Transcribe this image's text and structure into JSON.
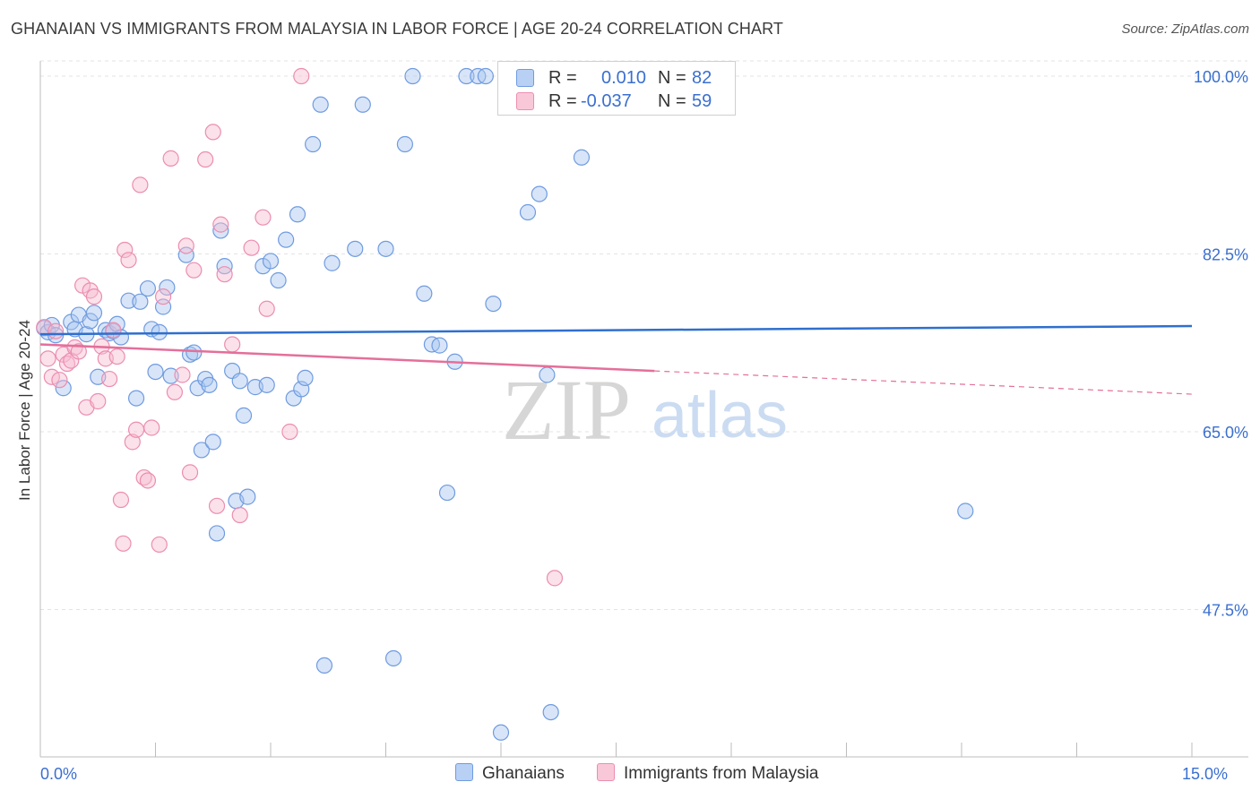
{
  "title": "GHANAIAN VS IMMIGRANTS FROM MALAYSIA IN LABOR FORCE | AGE 20-24 CORRELATION CHART",
  "source": "Source: ZipAtlas.com",
  "watermark": {
    "zip": "ZIP",
    "atlas": "atlas"
  },
  "colors": {
    "blue_fill": "#a9c6f0",
    "blue_stroke": "#6f9be0",
    "blue_line": "#2f6fce",
    "pink_fill": "#f6bcd0",
    "pink_stroke": "#ec8db0",
    "pink_line": "#e46f9a",
    "axis_value": "#3a6fd0",
    "grid": "#e3e3e3"
  },
  "legend_top": {
    "rows": [
      {
        "series": "blue",
        "r_label": "R =",
        "r_value": "0.010",
        "n_label": "N =",
        "n_value": "82"
      },
      {
        "series": "pink",
        "r_label": "R =",
        "r_value": "-0.037",
        "n_label": "N =",
        "n_value": "59"
      }
    ]
  },
  "legend_bottom": [
    {
      "series": "blue",
      "label": "Ghanaians"
    },
    {
      "series": "pink",
      "label": "Immigrants from Malaysia"
    }
  ],
  "chart_data": {
    "type": "scatter",
    "title": "GHANAIAN VS IMMIGRANTS FROM MALAYSIA IN LABOR FORCE | AGE 20-24 CORRELATION CHART",
    "xlabel": "",
    "ylabel": "In Labor Force | Age 20-24",
    "xlim": [
      0,
      15
    ],
    "ylim": [
      33,
      101.5
    ],
    "x_tick_labels": [
      {
        "value": 0,
        "label": "0.0%"
      },
      {
        "value": 15,
        "label": "15.0%"
      }
    ],
    "y_tick_labels": [
      {
        "value": 100,
        "label": "100.0%"
      },
      {
        "value": 82.5,
        "label": "82.5%"
      },
      {
        "value": 65,
        "label": "65.0%"
      },
      {
        "value": 47.5,
        "label": "47.5%"
      }
    ],
    "x_minor_ticks": [
      1.5,
      3,
      4.5,
      6,
      7.5,
      9,
      10.5,
      12,
      13.5,
      15
    ],
    "grid": true,
    "series": [
      {
        "name": "Ghanaians",
        "color": "blue",
        "trend": {
          "x": [
            0,
            15
          ],
          "y": [
            74.6,
            75.4
          ],
          "dashed_from": null
        },
        "points": [
          [
            0.05,
            75.2
          ],
          [
            0.1,
            74.8
          ],
          [
            0.15,
            75.5
          ],
          [
            0.2,
            74.5
          ],
          [
            0.3,
            69.3
          ],
          [
            0.4,
            75.8
          ],
          [
            0.45,
            75.1
          ],
          [
            0.5,
            76.5
          ],
          [
            0.6,
            74.6
          ],
          [
            0.65,
            75.9
          ],
          [
            0.7,
            76.7
          ],
          [
            0.75,
            70.4
          ],
          [
            0.85,
            75.0
          ],
          [
            0.9,
            74.7
          ],
          [
            0.95,
            74.9
          ],
          [
            1.0,
            75.6
          ],
          [
            1.05,
            74.3
          ],
          [
            1.15,
            77.9
          ],
          [
            1.25,
            68.3
          ],
          [
            1.3,
            77.8
          ],
          [
            1.4,
            79.1
          ],
          [
            1.45,
            75.1
          ],
          [
            1.5,
            70.9
          ],
          [
            1.55,
            74.8
          ],
          [
            1.6,
            77.3
          ],
          [
            1.65,
            79.2
          ],
          [
            1.7,
            70.5
          ],
          [
            1.9,
            82.4
          ],
          [
            1.95,
            72.6
          ],
          [
            2.0,
            72.8
          ],
          [
            2.05,
            69.3
          ],
          [
            2.1,
            63.2
          ],
          [
            2.15,
            70.2
          ],
          [
            2.2,
            69.6
          ],
          [
            2.25,
            64.0
          ],
          [
            2.3,
            55.0
          ],
          [
            2.35,
            84.8
          ],
          [
            2.4,
            81.3
          ],
          [
            2.5,
            71.0
          ],
          [
            2.55,
            58.2
          ],
          [
            2.6,
            70.0
          ],
          [
            2.65,
            66.6
          ],
          [
            2.7,
            58.6
          ],
          [
            2.8,
            69.4
          ],
          [
            2.9,
            81.3
          ],
          [
            2.95,
            69.6
          ],
          [
            3.0,
            81.8
          ],
          [
            3.1,
            79.9
          ],
          [
            3.2,
            83.9
          ],
          [
            3.3,
            68.3
          ],
          [
            3.35,
            86.4
          ],
          [
            3.4,
            69.2
          ],
          [
            3.45,
            70.3
          ],
          [
            3.55,
            93.3
          ],
          [
            3.65,
            97.2
          ],
          [
            3.7,
            42.0
          ],
          [
            3.8,
            81.6
          ],
          [
            4.1,
            83.0
          ],
          [
            4.2,
            97.2
          ],
          [
            4.5,
            83.0
          ],
          [
            4.6,
            42.7
          ],
          [
            4.75,
            93.3
          ],
          [
            4.85,
            100.0
          ],
          [
            5.0,
            78.6
          ],
          [
            5.1,
            73.6
          ],
          [
            5.2,
            73.5
          ],
          [
            5.3,
            59.0
          ],
          [
            5.4,
            71.9
          ],
          [
            5.55,
            100.0
          ],
          [
            5.7,
            100.0
          ],
          [
            5.8,
            100.0
          ],
          [
            5.9,
            77.6
          ],
          [
            6.0,
            35.4
          ],
          [
            6.35,
            86.6
          ],
          [
            6.5,
            88.4
          ],
          [
            6.6,
            70.6
          ],
          [
            6.65,
            37.4
          ],
          [
            7.05,
            92.0
          ],
          [
            12.05,
            57.2
          ]
        ]
      },
      {
        "name": "Immigrants from Malaysia",
        "color": "pink",
        "trend": {
          "x": [
            0,
            15
          ],
          "y": [
            73.6,
            68.7
          ],
          "dashed_from": 8.0
        },
        "points": [
          [
            0.05,
            75.3
          ],
          [
            0.1,
            72.2
          ],
          [
            0.15,
            70.4
          ],
          [
            0.2,
            74.9
          ],
          [
            0.25,
            70.1
          ],
          [
            0.3,
            72.6
          ],
          [
            0.35,
            71.7
          ],
          [
            0.4,
            72.0
          ],
          [
            0.45,
            73.3
          ],
          [
            0.5,
            72.9
          ],
          [
            0.55,
            79.4
          ],
          [
            0.6,
            67.4
          ],
          [
            0.65,
            78.9
          ],
          [
            0.7,
            78.3
          ],
          [
            0.75,
            68.0
          ],
          [
            0.8,
            73.4
          ],
          [
            0.85,
            72.2
          ],
          [
            0.9,
            70.2
          ],
          [
            0.95,
            75.0
          ],
          [
            1.0,
            72.4
          ],
          [
            1.05,
            58.3
          ],
          [
            1.08,
            54.0
          ],
          [
            1.1,
            82.9
          ],
          [
            1.15,
            81.9
          ],
          [
            1.2,
            64.0
          ],
          [
            1.25,
            65.2
          ],
          [
            1.3,
            89.3
          ],
          [
            1.35,
            60.5
          ],
          [
            1.4,
            60.2
          ],
          [
            1.45,
            65.4
          ],
          [
            1.55,
            53.9
          ],
          [
            1.6,
            78.3
          ],
          [
            1.7,
            91.9
          ],
          [
            1.75,
            68.9
          ],
          [
            1.85,
            70.6
          ],
          [
            1.9,
            83.3
          ],
          [
            1.95,
            61.0
          ],
          [
            2.0,
            80.9
          ],
          [
            2.15,
            91.8
          ],
          [
            2.25,
            94.5
          ],
          [
            2.3,
            57.7
          ],
          [
            2.35,
            85.4
          ],
          [
            2.4,
            80.5
          ],
          [
            2.5,
            73.6
          ],
          [
            2.6,
            56.8
          ],
          [
            2.75,
            83.1
          ],
          [
            2.9,
            86.1
          ],
          [
            2.95,
            77.1
          ],
          [
            3.25,
            65.0
          ],
          [
            3.4,
            100.0
          ],
          [
            6.7,
            50.6
          ]
        ]
      }
    ]
  }
}
